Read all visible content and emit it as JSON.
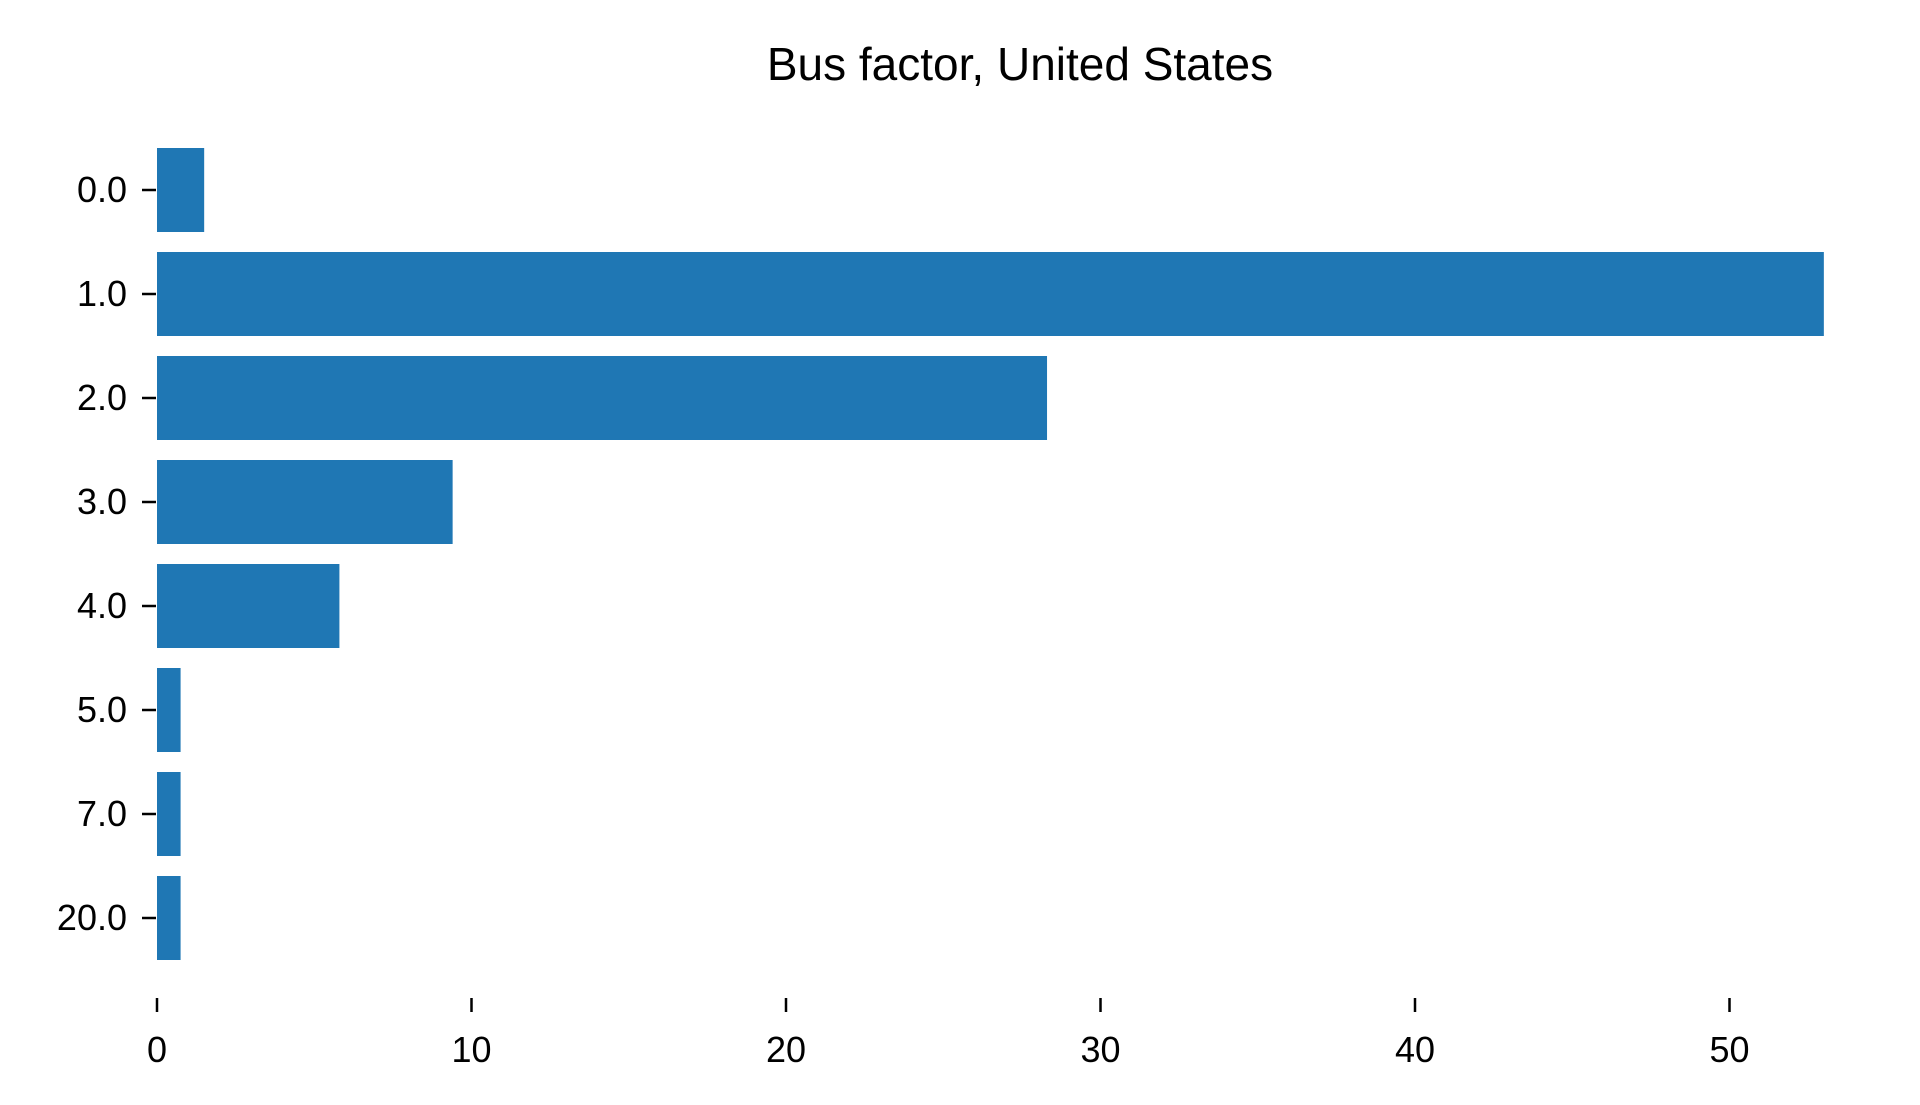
{
  "chart_data": {
    "type": "bar",
    "orientation": "horizontal",
    "title": "Bus factor, United States",
    "xlabel": "",
    "ylabel": "",
    "categories": [
      "0.0",
      "1.0",
      "2.0",
      "3.0",
      "4.0",
      "5.0",
      "7.0",
      "20.0"
    ],
    "values": [
      1.5,
      53.0,
      28.3,
      9.4,
      5.8,
      0.75,
      0.75,
      0.75
    ],
    "xlim": [
      0,
      55
    ],
    "xticks": [
      0,
      10,
      20,
      30,
      40,
      50
    ],
    "xtick_labels": [
      "0",
      "10",
      "20",
      "30",
      "40",
      "50"
    ],
    "grid": false,
    "legend": "none",
    "bar_color": "#1f77b4"
  }
}
